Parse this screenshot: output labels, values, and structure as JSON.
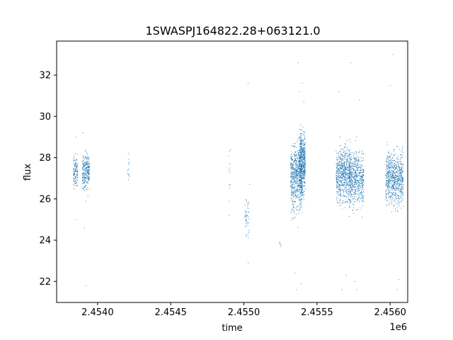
{
  "chart_data": {
    "type": "scatter",
    "title": "1SWASPJ164822.28+063121.0",
    "xlabel": "time",
    "ylabel": "flux",
    "x_offset_label": "1e6",
    "xlim": [
      2.45372,
      2.45612
    ],
    "ylim": [
      20.98,
      33.65
    ],
    "x_ticks": [
      2.454,
      2.4545,
      2.455,
      2.4555,
      2.456
    ],
    "x_tick_labels": [
      "2.4540",
      "2.4545",
      "2.4550",
      "2.4555",
      "2.4560"
    ],
    "y_ticks": [
      22,
      24,
      26,
      28,
      30,
      32
    ],
    "y_tick_labels": [
      "22",
      "24",
      "26",
      "28",
      "30",
      "32"
    ],
    "grid": false,
    "color": "#1f77b4",
    "groups": [
      {
        "x_center": 2.45385,
        "x_spread": 1.5e-05,
        "n": 120,
        "y_mean": 27.3,
        "y_sd": 0.55,
        "outliers": [
          [
            2.45385,
            25.0
          ],
          [
            2.45385,
            29.0
          ]
        ]
      },
      {
        "x_center": 2.45392,
        "x_spread": 2.5e-05,
        "n": 260,
        "y_mean": 27.3,
        "y_sd": 0.65,
        "outliers": [
          [
            2.45391,
            24.6
          ],
          [
            2.45392,
            21.8
          ],
          [
            2.4539,
            29.2
          ]
        ]
      },
      {
        "x_center": 2.45421,
        "x_spread": 8e-06,
        "n": 12,
        "y_mean": 27.4,
        "y_sd": 0.4,
        "outliers": [
          [
            2.45421,
            28.2
          ]
        ]
      },
      {
        "x_center": 2.4549,
        "x_spread": 8e-06,
        "n": 10,
        "y_mean": 26.8,
        "y_sd": 1.2,
        "outliers": [
          [
            2.4549,
            28.3
          ],
          [
            2.4549,
            25.2
          ]
        ]
      },
      {
        "x_center": 2.45502,
        "x_spread": 1.5e-05,
        "n": 45,
        "y_mean": 25.2,
        "y_sd": 0.7,
        "outliers": [
          [
            2.45504,
            26.7
          ],
          [
            2.45503,
            22.9
          ],
          [
            2.45503,
            31.6
          ]
        ]
      },
      {
        "x_center": 2.45525,
        "x_spread": 5e-06,
        "n": 5,
        "y_mean": 23.8,
        "y_sd": 0.25,
        "outliers": []
      },
      {
        "x_center": 2.45536,
        "x_spread": 4e-05,
        "n": 650,
        "y_mean": 27.1,
        "y_sd": 1.1,
        "outliers": [
          [
            2.45536,
            21.6
          ],
          [
            2.45537,
            32.6
          ],
          [
            2.45538,
            31.2
          ],
          [
            2.45535,
            22.4
          ]
        ]
      },
      {
        "x_center": 2.4554,
        "x_spread": 2e-05,
        "n": 520,
        "y_mean": 27.8,
        "y_sd": 1.0,
        "outliers": [
          [
            2.45541,
            30.7
          ],
          [
            2.4554,
            31.6
          ],
          [
            2.45539,
            21.9
          ]
        ]
      },
      {
        "x_center": 2.45568,
        "x_spread": 5e-05,
        "n": 620,
        "y_mean": 27.2,
        "y_sd": 0.9,
        "outliers": [
          [
            2.45565,
            31.2
          ],
          [
            2.45567,
            21.6
          ],
          [
            2.4557,
            22.3
          ],
          [
            2.45573,
            32.6
          ]
        ]
      },
      {
        "x_center": 2.45577,
        "x_spread": 5e-05,
        "n": 560,
        "y_mean": 27.0,
        "y_sd": 0.9,
        "outliers": [
          [
            2.45577,
            21.6
          ],
          [
            2.45579,
            30.8
          ],
          [
            2.45576,
            22.0
          ]
        ]
      },
      {
        "x_center": 2.45603,
        "x_spread": 6e-05,
        "n": 700,
        "y_mean": 27.0,
        "y_sd": 0.85,
        "outliers": [
          [
            2.45602,
            33.0
          ],
          [
            2.45605,
            21.6
          ],
          [
            2.45606,
            22.1
          ],
          [
            2.456,
            31.5
          ]
        ]
      }
    ]
  }
}
